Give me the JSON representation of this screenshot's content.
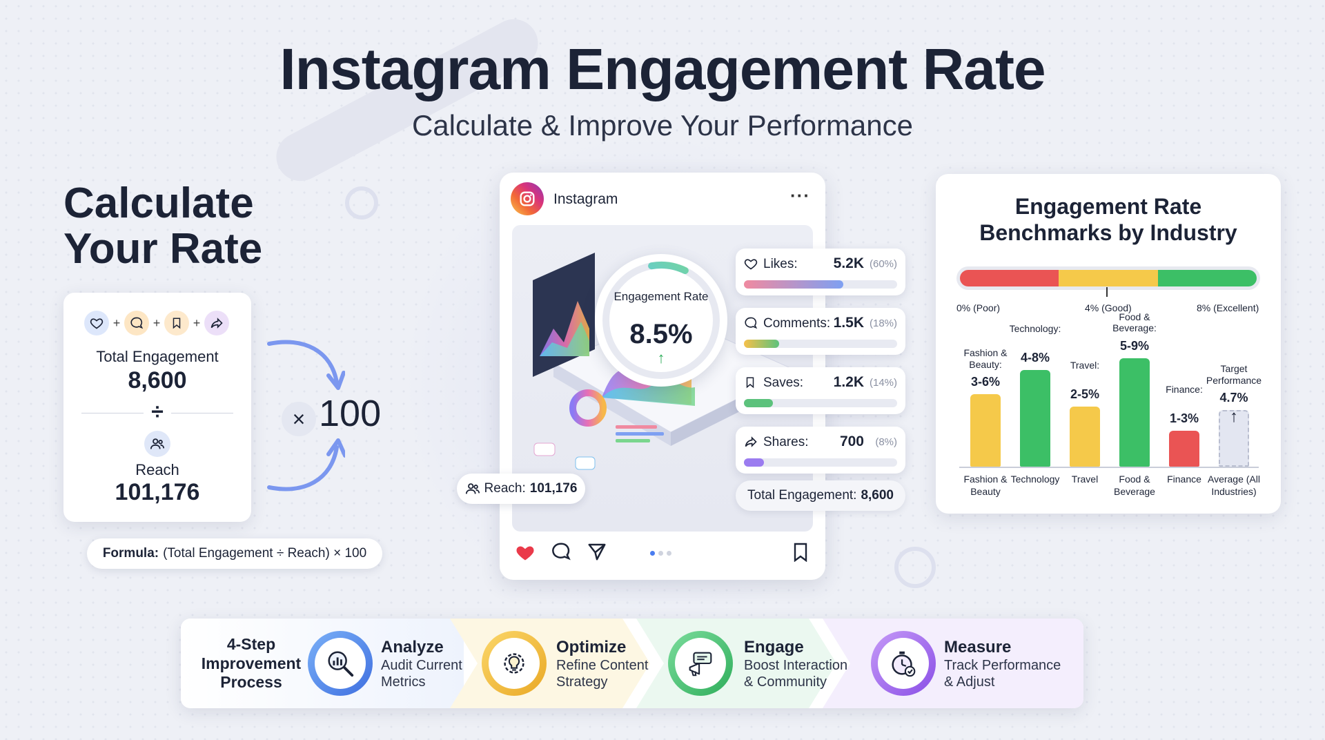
{
  "header": {
    "title": "Instagram Engagement Rate",
    "subtitle": "Calculate & Improve Your Performance"
  },
  "calculator": {
    "heading_line1": "Calculate",
    "heading_line2": "Your Rate",
    "total_engagement_label": "Total Engagement",
    "total_engagement_value": "8,600",
    "divide_symbol": "÷",
    "reach_label": "Reach",
    "reach_value": "101,176",
    "multiply_symbol": "×",
    "multiplier": "100",
    "formula_label": "Formula:",
    "formula_text": "(Total Engagement ÷ Reach) × 100",
    "icons": [
      "heart-icon",
      "comment-icon",
      "bookmark-icon",
      "share-icon"
    ],
    "plus": "+"
  },
  "instagram_post": {
    "app_name": "Instagram",
    "more": "···",
    "engagement_rate_label": "Engagement Rate",
    "engagement_rate_value": "8.5%",
    "engagement_rate_trend": "↑",
    "metrics": [
      {
        "icon": "heart-icon",
        "label": "Likes:",
        "value": "5.2K",
        "percent": "(60%)",
        "fraction": 0.6,
        "color": "#f08aa0",
        "color2": "#7ea0f2"
      },
      {
        "icon": "comment-icon",
        "label": "Comments:",
        "value": "1.5K",
        "percent": "(18%)",
        "fraction": 0.18,
        "color": "#f6c04a",
        "color2": "#5cc27c"
      },
      {
        "icon": "bookmark-icon",
        "label": "Saves:",
        "value": "1.2K",
        "percent": "(14%)",
        "fraction": 0.14,
        "color": "#5cc27c",
        "color2": "#5cc27c"
      },
      {
        "icon": "share-icon",
        "label": "Shares:",
        "value": "700",
        "percent": "(8%)",
        "fraction": 0.08,
        "color": "#9b7cf0",
        "color2": "#9b7cf0"
      }
    ],
    "total_engagement_label": "Total Engagement:",
    "total_engagement_value": "8,600",
    "reach_label": "Reach:",
    "reach_value": "101,176",
    "carousel_dots": 3,
    "active_dot": 0
  },
  "benchmarks": {
    "title_line1": "Engagement Rate",
    "title_line2": "Benchmarks by Industry",
    "scale": {
      "colors": [
        "#ea5454",
        "#f5c94a",
        "#3cbf66"
      ],
      "labels": [
        "0% (Poor)",
        "4% (Good)",
        "8% (Excellent)"
      ]
    },
    "chart_data": {
      "type": "bar",
      "categories": [
        "Fashion & Beauty",
        "Technology",
        "Travel",
        "Food & Beverage",
        "Finance",
        "Average (All Industries)"
      ],
      "top_labels": [
        "Fashion & Beauty:",
        "Technology:",
        "Travel:",
        "Food & Beverage:",
        "Finance:",
        "Target Performance"
      ],
      "range_labels": [
        "3-6%",
        "4-8%",
        "2-5%",
        "5-9%",
        "1-3%",
        "4.7%"
      ],
      "ranges": [
        [
          3,
          6
        ],
        [
          4,
          8
        ],
        [
          2,
          5
        ],
        [
          5,
          9
        ],
        [
          1,
          3
        ],
        [
          4.7,
          4.7
        ]
      ],
      "colors": [
        "#f5c94a",
        "#3cbf66",
        "#f5c94a",
        "#3cbf66",
        "#ea5454",
        "#e3e6f1"
      ],
      "ylim": [
        0,
        10
      ]
    }
  },
  "steps": {
    "heading": "4-Step Improvement Process",
    "items": [
      {
        "icon": "magnifier-chart-icon",
        "title": "Analyze",
        "desc_line1": "Audit Current",
        "desc_line2": "Metrics",
        "ring": "#5b8ff0",
        "bg": "#eaf1fd"
      },
      {
        "icon": "gear-bulb-icon",
        "title": "Optimize",
        "desc_line1": "Refine Content",
        "desc_line2": "Strategy",
        "ring": "#f2c33c",
        "bg": "#fdf7e2"
      },
      {
        "icon": "megaphone-icon",
        "title": "Engage",
        "desc_line1": "Boost Interaction",
        "desc_line2": "& Community",
        "ring": "#4cc27a",
        "bg": "#e9f7ee"
      },
      {
        "icon": "stopwatch-check-icon",
        "title": "Measure",
        "desc_line1": "Track Performance",
        "desc_line2": "& Adjust",
        "ring": "#a36ef0",
        "bg": "#f2ebfc"
      }
    ]
  }
}
